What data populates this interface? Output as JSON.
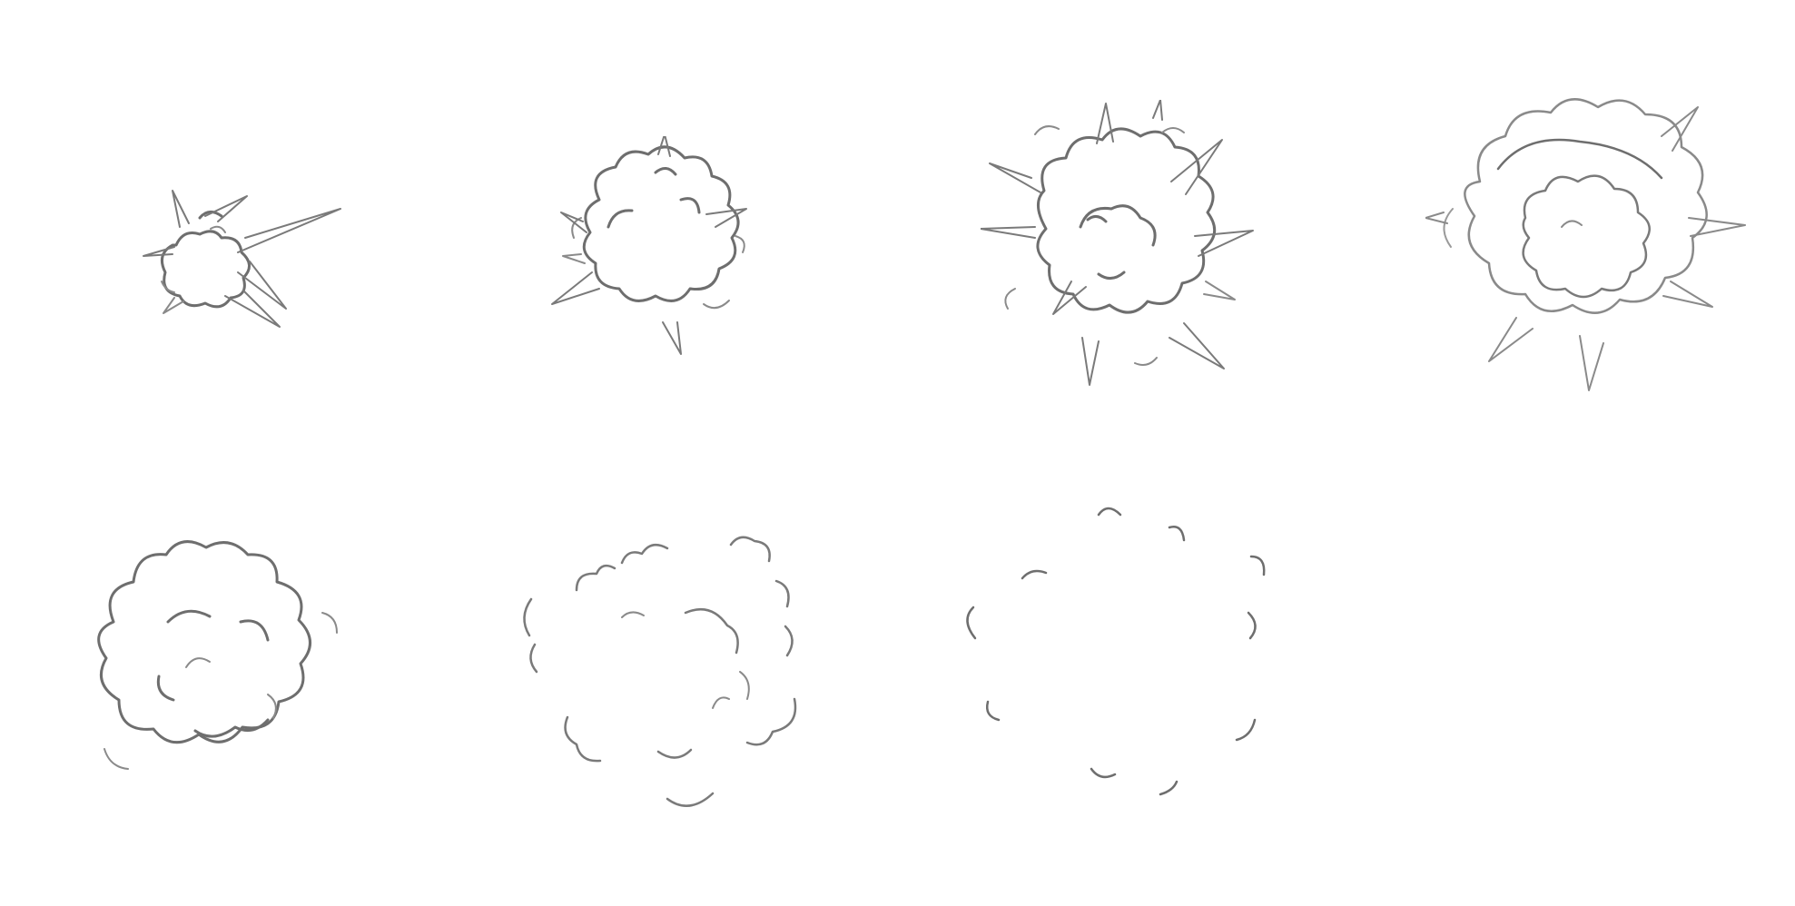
{
  "sheet": {
    "background": "#ffffff",
    "line_color": "#6e6e6e",
    "line_color_light": "#9a9a9a"
  },
  "frames": [
    {
      "id": "frame-1",
      "stage": "ignition-small-burst"
    },
    {
      "id": "frame-2",
      "stage": "growing-cloud"
    },
    {
      "id": "frame-3",
      "stage": "peak-spiky-burst"
    },
    {
      "id": "frame-4",
      "stage": "expanding-ring"
    },
    {
      "id": "frame-5",
      "stage": "billowing-smoke"
    },
    {
      "id": "frame-6",
      "stage": "dissipating-smoke"
    },
    {
      "id": "frame-7",
      "stage": "scattered-wisps"
    }
  ]
}
